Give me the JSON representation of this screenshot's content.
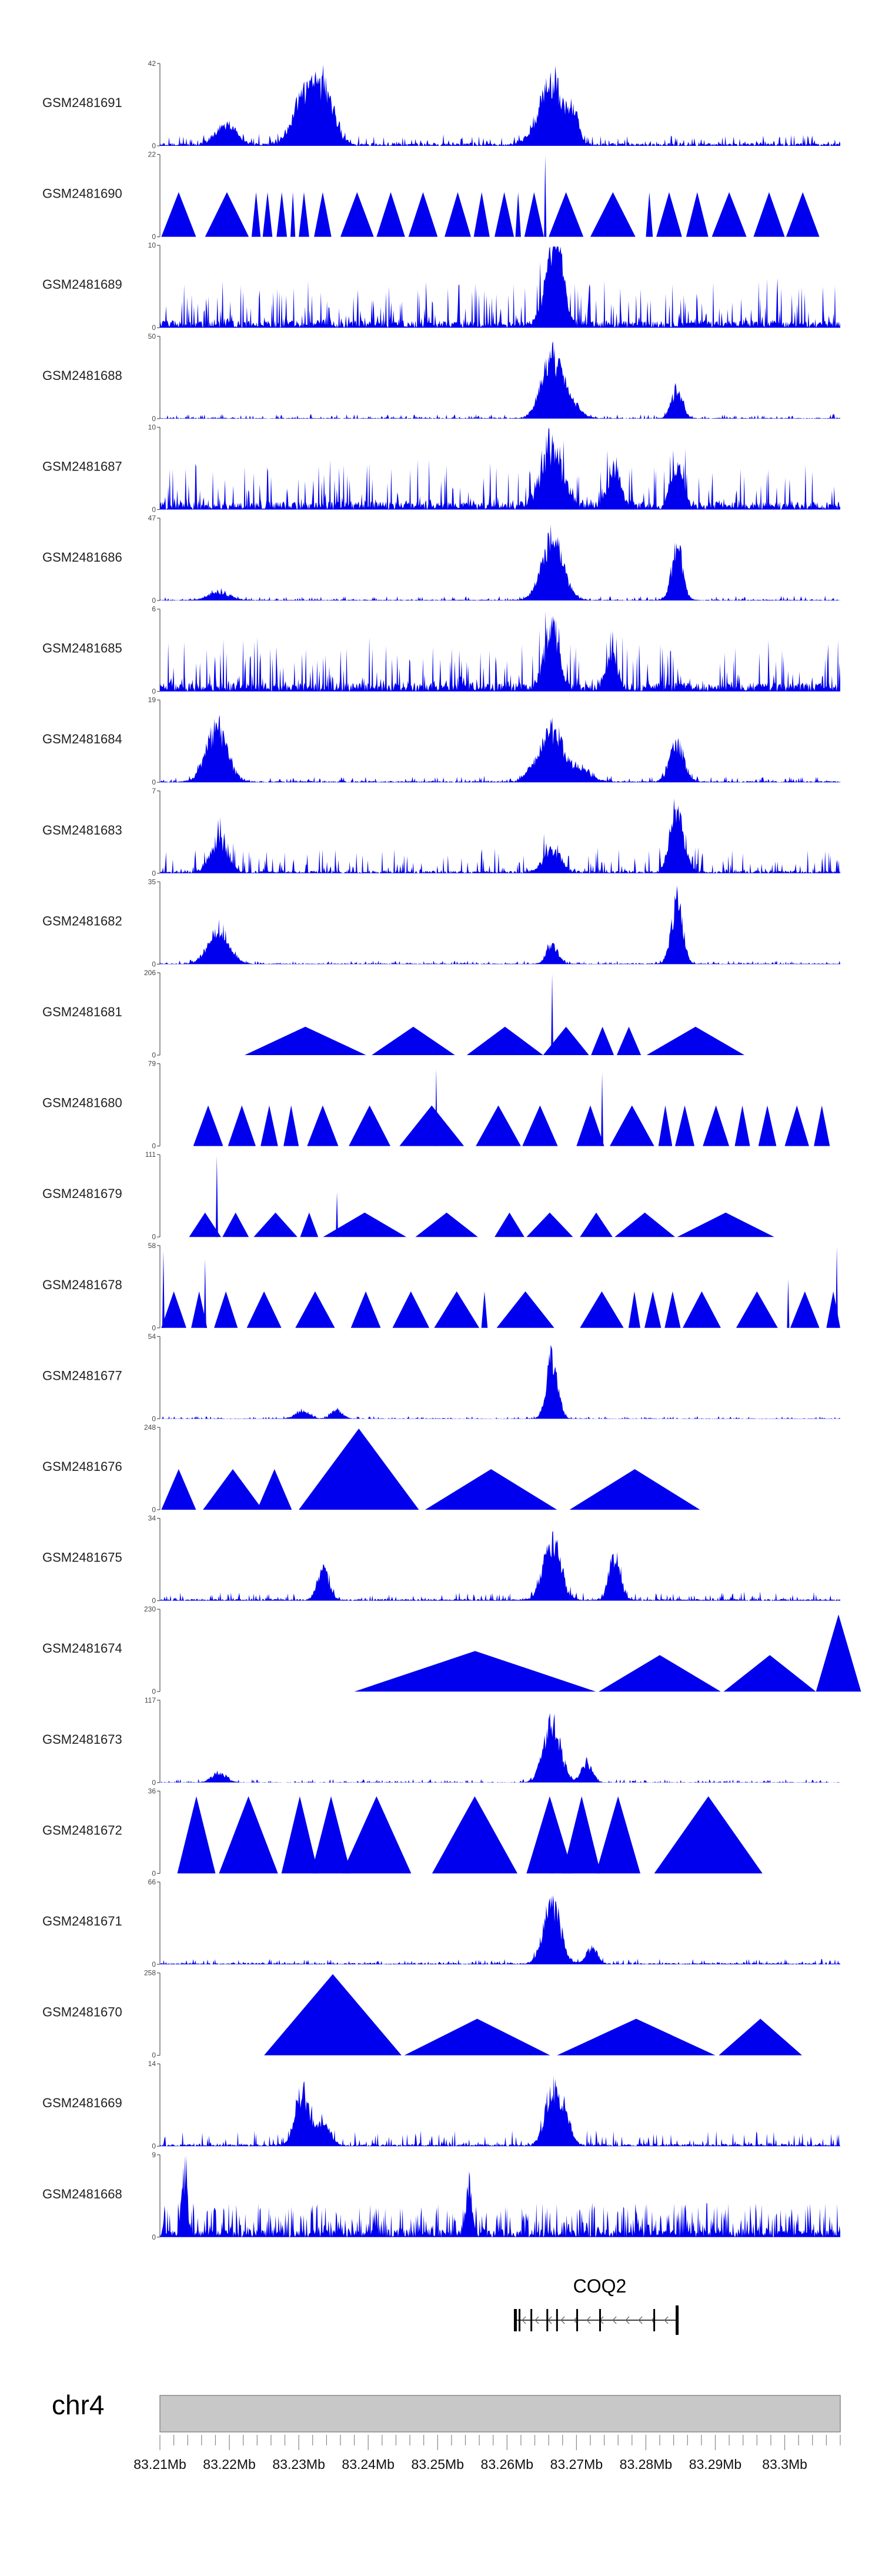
{
  "chart_data": {
    "type": "area",
    "chromosome": "chr4",
    "xlim": [
      83.21,
      83.308
    ],
    "ticks": [
      "83.21Mb",
      "83.22Mb",
      "83.23Mb",
      "83.24Mb",
      "83.25Mb",
      "83.26Mb",
      "83.27Mb",
      "83.28Mb",
      "83.29Mb",
      "83.3Mb"
    ],
    "tick_values": [
      83.21,
      83.22,
      83.23,
      83.24,
      83.25,
      83.26,
      83.27,
      83.28,
      83.29,
      83.3
    ],
    "gene": {
      "name": "COQ2",
      "start": 83.261,
      "end": 83.2845,
      "strand": "-",
      "exons": [
        83.2612,
        83.2618,
        83.2635,
        83.2658,
        83.2672,
        83.2701,
        83.2734,
        83.2812,
        83.2845
      ]
    },
    "tracks": [
      {
        "name": "GSM2481691",
        "ymax": "42",
        "ymin": "0",
        "style": "dense",
        "seed": 11,
        "base": 0.07,
        "noise": 0.12,
        "peaks": [
          [
            83.2305,
            0.0015,
            0.65
          ],
          [
            83.2335,
            0.0015,
            0.85
          ],
          [
            83.2665,
            0.0018,
            0.95
          ],
          [
            83.2698,
            0.0006,
            0.35
          ],
          [
            83.2195,
            0.0015,
            0.3
          ]
        ]
      },
      {
        "name": "GSM2481690",
        "ymax": "22",
        "ymin": "0",
        "style": "sparse",
        "tri": [
          [
            83.2102,
            83.2152,
            0.55
          ],
          [
            83.2165,
            83.2228,
            0.55
          ],
          [
            83.2232,
            83.2245,
            0.55
          ],
          [
            83.2248,
            83.2262,
            0.55
          ],
          [
            83.2268,
            83.2283,
            0.55
          ],
          [
            83.2288,
            83.2295,
            0.55
          ],
          [
            83.23,
            83.2315,
            0.55
          ],
          [
            83.2322,
            83.2347,
            0.55
          ],
          [
            83.236,
            83.2408,
            0.55
          ],
          [
            83.2412,
            83.2453,
            0.55
          ],
          [
            83.2458,
            83.25,
            0.55
          ],
          [
            83.251,
            83.2548,
            0.55
          ],
          [
            83.2552,
            83.2575,
            0.55
          ],
          [
            83.2582,
            83.261,
            0.55
          ],
          [
            83.2612,
            83.262,
            0.55
          ],
          [
            83.2625,
            83.2653,
            0.55
          ],
          [
            83.266,
            83.271,
            0.55
          ],
          [
            83.272,
            83.2785,
            0.55
          ],
          [
            83.28,
            83.281,
            0.55
          ],
          [
            83.2815,
            83.2852,
            0.55
          ],
          [
            83.2858,
            83.289,
            0.55
          ],
          [
            83.2895,
            83.2945,
            0.55
          ],
          [
            83.2955,
            83.3,
            0.55
          ],
          [
            83.3002,
            83.305,
            0.55
          ]
        ],
        "spikes": [
          [
            83.2655,
            1.0
          ]
        ]
      },
      {
        "name": "GSM2481689",
        "ymax": "10",
        "ymin": "0",
        "style": "dense",
        "seed": 23,
        "base": 0.18,
        "noise": 0.55,
        "peaks": [
          [
            83.2665,
            0.0012,
            0.9
          ],
          [
            83.2675,
            0.0008,
            0.6
          ]
        ]
      },
      {
        "name": "GSM2481688",
        "ymax": "50",
        "ymin": "0",
        "style": "dense",
        "seed": 31,
        "base": 0.02,
        "noise": 0.05,
        "peaks": [
          [
            83.2665,
            0.0015,
            0.95
          ],
          [
            83.2695,
            0.0012,
            0.18
          ],
          [
            83.2845,
            0.0008,
            0.45
          ]
        ]
      },
      {
        "name": "GSM2481687",
        "ymax": "10",
        "ymin": "0",
        "style": "dense",
        "seed": 37,
        "base": 0.2,
        "noise": 0.55,
        "peaks": [
          [
            83.2665,
            0.0015,
            0.9
          ],
          [
            83.2755,
            0.001,
            0.5
          ],
          [
            83.2845,
            0.0008,
            0.6
          ]
        ]
      },
      {
        "name": "GSM2481686",
        "ymax": "47",
        "ymin": "0",
        "style": "dense",
        "seed": 41,
        "base": 0.02,
        "noise": 0.05,
        "peaks": [
          [
            83.2665,
            0.0015,
            0.95
          ],
          [
            83.2845,
            0.0008,
            0.8
          ],
          [
            83.2185,
            0.0015,
            0.12
          ]
        ]
      },
      {
        "name": "GSM2481685",
        "ymax": "6",
        "ymin": "0",
        "style": "dense",
        "seed": 47,
        "base": 0.22,
        "noise": 0.6,
        "peaks": [
          [
            83.2665,
            0.001,
            0.95
          ],
          [
            83.275,
            0.0008,
            0.5
          ]
        ]
      },
      {
        "name": "GSM2481684",
        "ymax": "19",
        "ymin": "0",
        "style": "dense",
        "seed": 53,
        "base": 0.03,
        "noise": 0.07,
        "peaks": [
          [
            83.2182,
            0.0015,
            0.85
          ],
          [
            83.2665,
            0.0015,
            0.8
          ],
          [
            83.2705,
            0.0015,
            0.2
          ],
          [
            83.2845,
            0.001,
            0.6
          ],
          [
            83.2635,
            0.001,
            0.15
          ]
        ]
      },
      {
        "name": "GSM2481683",
        "ymax": "7",
        "ymin": "0",
        "style": "dense",
        "seed": 59,
        "base": 0.06,
        "noise": 0.3,
        "peaks": [
          [
            83.2185,
            0.0012,
            0.5
          ],
          [
            83.2845,
            0.001,
            0.9
          ],
          [
            83.2665,
            0.0012,
            0.35
          ]
        ]
      },
      {
        "name": "GSM2481682",
        "ymax": "35",
        "ymin": "0",
        "style": "dense",
        "seed": 61,
        "base": 0.02,
        "noise": 0.04,
        "peaks": [
          [
            83.2185,
            0.0015,
            0.55
          ],
          [
            83.2665,
            0.0008,
            0.3
          ],
          [
            83.2845,
            0.0008,
            1.0
          ]
        ]
      },
      {
        "name": "GSM2481681",
        "ymax": "206",
        "ymin": "0",
        "style": "sparse",
        "tri": [
          [
            83.2222,
            83.2397,
            0.35
          ],
          [
            83.2405,
            83.2525,
            0.35
          ],
          [
            83.2542,
            83.2652,
            0.35
          ],
          [
            83.2652,
            83.2718,
            0.35
          ],
          [
            83.2721,
            83.2754,
            0.35
          ],
          [
            83.2758,
            83.2793,
            0.35
          ],
          [
            83.2801,
            83.2942,
            0.35
          ]
        ],
        "spikes": [
          [
            83.2665,
            1.0
          ]
        ]
      },
      {
        "name": "GSM2481680",
        "ymax": "79",
        "ymin": "0",
        "style": "sparse",
        "tri": [
          [
            83.2148,
            83.2191,
            0.5
          ],
          [
            83.2198,
            83.2238,
            0.5
          ],
          [
            83.2245,
            83.227,
            0.5
          ],
          [
            83.2278,
            83.23,
            0.5
          ],
          [
            83.2312,
            83.2357,
            0.5
          ],
          [
            83.2372,
            83.2432,
            0.5
          ],
          [
            83.2445,
            83.2538,
            0.5
          ],
          [
            83.2555,
            83.262,
            0.5
          ],
          [
            83.2622,
            83.2673,
            0.5
          ],
          [
            83.27,
            83.274,
            0.5
          ],
          [
            83.2748,
            83.2812,
            0.5
          ],
          [
            83.2818,
            83.2838,
            0.5
          ],
          [
            83.2842,
            83.287,
            0.5
          ],
          [
            83.2882,
            83.292,
            0.5
          ],
          [
            83.2928,
            83.295,
            0.5
          ],
          [
            83.2962,
            83.2988,
            0.5
          ],
          [
            83.3,
            83.3035,
            0.5
          ],
          [
            83.3042,
            83.3065,
            0.5
          ]
        ],
        "spikes": [
          [
            83.2498,
            0.95
          ],
          [
            83.2737,
            0.9
          ]
        ]
      },
      {
        "name": "GSM2481679",
        "ymax": "111",
        "ymin": "0",
        "style": "sparse",
        "tri": [
          [
            83.2142,
            83.2188,
            0.3
          ],
          [
            83.219,
            83.2228,
            0.3
          ],
          [
            83.2235,
            83.2298,
            0.3
          ],
          [
            83.2302,
            83.2328,
            0.3
          ],
          [
            83.2335,
            83.2455,
            0.3
          ],
          [
            83.2468,
            83.2558,
            0.3
          ],
          [
            83.2582,
            83.2625,
            0.3
          ],
          [
            83.2628,
            83.2695,
            0.3
          ],
          [
            83.2705,
            83.2752,
            0.3
          ],
          [
            83.2755,
            83.2842,
            0.3
          ],
          [
            83.2845,
            83.2985,
            0.3
          ]
        ],
        "spikes": [
          [
            83.2182,
            1.0
          ],
          [
            83.2355,
            0.55
          ]
        ]
      },
      {
        "name": "GSM2481678",
        "ymax": "58",
        "ymin": "0",
        "style": "sparse",
        "tri": [
          [
            83.2102,
            83.2138,
            0.45
          ],
          [
            83.2145,
            83.2168,
            0.45
          ],
          [
            83.2178,
            83.2212,
            0.45
          ],
          [
            83.2225,
            83.2275,
            0.45
          ],
          [
            83.2295,
            83.2352,
            0.45
          ],
          [
            83.2375,
            83.2418,
            0.45
          ],
          [
            83.2435,
            83.2488,
            0.45
          ],
          [
            83.2495,
            83.256,
            0.45
          ],
          [
            83.2563,
            83.2572,
            0.45
          ],
          [
            83.2585,
            83.2668,
            0.45
          ],
          [
            83.2705,
            83.2768,
            0.45
          ],
          [
            83.2775,
            83.2792,
            0.45
          ],
          [
            83.2798,
            83.2822,
            0.45
          ],
          [
            83.2827,
            83.285,
            0.45
          ],
          [
            83.2853,
            83.2908,
            0.45
          ],
          [
            83.293,
            83.299,
            0.45
          ],
          [
            83.3008,
            83.305,
            0.45
          ],
          [
            83.306,
            83.308,
            0.45
          ]
        ],
        "spikes": [
          [
            83.2105,
            0.95
          ],
          [
            83.2165,
            0.85
          ],
          [
            83.3005,
            0.6
          ],
          [
            83.3075,
            1.0
          ]
        ]
      },
      {
        "name": "GSM2481677",
        "ymax": "54",
        "ymin": "0",
        "style": "dense",
        "seed": 71,
        "base": 0.01,
        "noise": 0.03,
        "peaks": [
          [
            83.2665,
            0.0008,
            1.0
          ],
          [
            83.2355,
            0.0008,
            0.14
          ],
          [
            83.2305,
            0.001,
            0.12
          ]
        ]
      },
      {
        "name": "GSM2481676",
        "ymax": "248",
        "ymin": "0",
        "style": "sparse",
        "tri": [
          [
            83.2102,
            83.2152,
            0.5
          ],
          [
            83.2162,
            83.2248,
            0.5
          ],
          [
            83.224,
            83.229,
            0.5
          ],
          [
            83.23,
            83.2473,
            1.0
          ],
          [
            83.2482,
            83.2672,
            0.5
          ],
          [
            83.269,
            83.2878,
            0.5
          ]
        ],
        "spikes": []
      },
      {
        "name": "GSM2481675",
        "ymax": "34",
        "ymin": "0",
        "style": "dense",
        "seed": 79,
        "base": 0.04,
        "noise": 0.1,
        "peaks": [
          [
            83.2665,
            0.0012,
            0.95
          ],
          [
            83.2755,
            0.0008,
            0.7
          ],
          [
            83.2335,
            0.0008,
            0.5
          ]
        ]
      },
      {
        "name": "GSM2481674",
        "ymax": "230",
        "ymin": "0",
        "style": "sparse",
        "tri": [
          [
            83.238,
            83.2728,
            0.5
          ],
          [
            83.2732,
            83.2908,
            0.45
          ],
          [
            83.2912,
            83.3045,
            0.45
          ],
          [
            83.3045,
            83.311,
            0.95
          ]
        ],
        "spikes": []
      },
      {
        "name": "GSM2481673",
        "ymax": "117",
        "ymin": "0",
        "style": "dense",
        "seed": 83,
        "base": 0.01,
        "noise": 0.04,
        "peaks": [
          [
            83.2665,
            0.0012,
            0.95
          ],
          [
            83.2715,
            0.0008,
            0.3
          ],
          [
            83.2185,
            0.001,
            0.15
          ]
        ]
      },
      {
        "name": "GSM2481672",
        "ymax": "36",
        "ymin": "0",
        "style": "sparse",
        "tri": [
          [
            83.2125,
            83.218,
            0.95
          ],
          [
            83.2185,
            83.227,
            0.95
          ],
          [
            83.2275,
            83.2328,
            0.95
          ],
          [
            83.2318,
            83.2375,
            0.95
          ],
          [
            83.2362,
            83.2462,
            0.95
          ],
          [
            83.2492,
            83.2615,
            0.95
          ],
          [
            83.2628,
            83.2695,
            0.95
          ],
          [
            83.268,
            83.2735,
            0.95
          ],
          [
            83.2728,
            83.2792,
            0.95
          ],
          [
            83.2812,
            83.2968,
            0.95
          ]
        ],
        "spikes": [
          [
            83.2665,
            0.9
          ]
        ]
      },
      {
        "name": "GSM2481671",
        "ymax": "66",
        "ymin": "0",
        "style": "dense",
        "seed": 89,
        "base": 0.03,
        "noise": 0.06,
        "peaks": [
          [
            83.2665,
            0.0012,
            0.95
          ],
          [
            83.2722,
            0.0008,
            0.25
          ]
        ]
      },
      {
        "name": "GSM2481670",
        "ymax": "258",
        "ymin": "0",
        "style": "sparse",
        "tri": [
          [
            83.225,
            83.2448,
            1.0
          ],
          [
            83.2452,
            83.2662,
            0.45
          ],
          [
            83.2672,
            83.29,
            0.45
          ],
          [
            83.2905,
            83.3025,
            0.45
          ]
        ],
        "spikes": []
      },
      {
        "name": "GSM2481669",
        "ymax": "14",
        "ymin": "0",
        "style": "dense",
        "seed": 97,
        "base": 0.05,
        "noise": 0.18,
        "peaks": [
          [
            83.2305,
            0.001,
            0.8
          ],
          [
            83.2335,
            0.001,
            0.35
          ],
          [
            83.2665,
            0.001,
            0.9
          ],
          [
            83.2685,
            0.0008,
            0.4
          ]
        ]
      },
      {
        "name": "GSM2481668",
        "ymax": "9",
        "ymin": "0",
        "style": "spiky",
        "seed": 101,
        "base": 0.1,
        "noise": 0.35,
        "peaks": [
          [
            83.2135,
            0.0004,
            0.9
          ],
          [
            83.2545,
            0.0004,
            0.8
          ]
        ]
      }
    ]
  }
}
